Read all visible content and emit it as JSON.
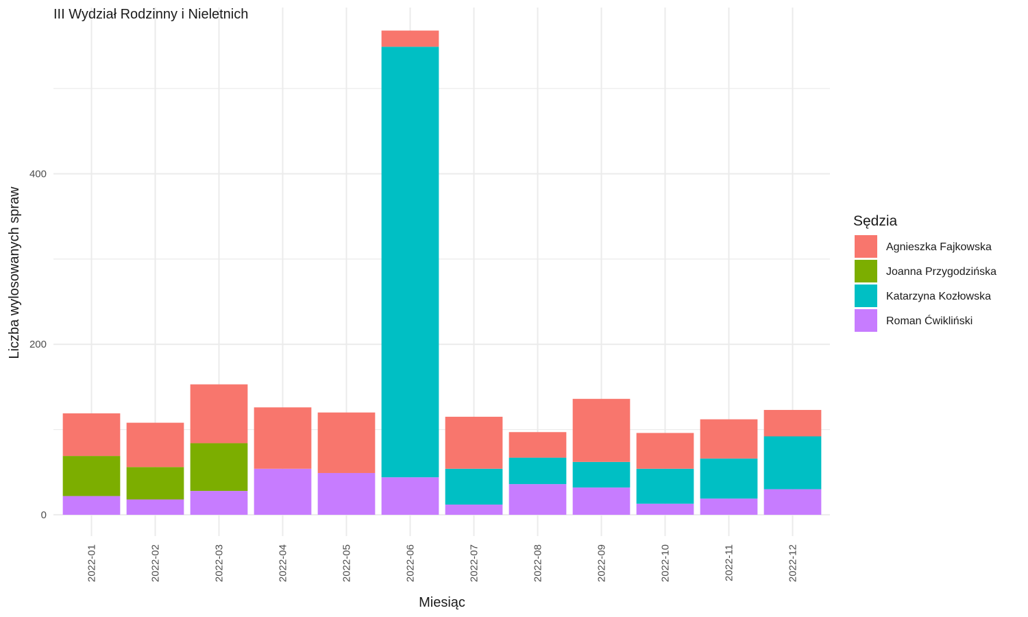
{
  "chart_data": {
    "type": "bar",
    "stacked": true,
    "title": "III Wydział Rodzinny i Nieletnich",
    "xlabel": "Miesiąc",
    "ylabel": "Liczba wylosowanych spraw",
    "ylim": [
      -25,
      595
    ],
    "yticks": [
      0,
      200,
      400
    ],
    "grid": true,
    "legend_position": "right",
    "categories": [
      "2022-01",
      "2022-02",
      "2022-03",
      "2022-04",
      "2022-05",
      "2022-06",
      "2022-07",
      "2022-08",
      "2022-09",
      "2022-10",
      "2022-11",
      "2022-12"
    ],
    "legend_title": "Sędzia",
    "series": [
      {
        "name": "Roman Ćwikliński",
        "color": "#C77CFF",
        "values": [
          22,
          18,
          28,
          54,
          49,
          44,
          12,
          36,
          32,
          13,
          19,
          30
        ]
      },
      {
        "name": "Katarzyna Kozłowska",
        "color": "#00BFC4",
        "values": [
          0,
          0,
          0,
          0,
          0,
          505,
          42,
          31,
          30,
          41,
          47,
          62
        ]
      },
      {
        "name": "Joanna Przygodzińska",
        "color": "#7CAE00",
        "values": [
          47,
          38,
          56,
          0,
          0,
          0,
          0,
          0,
          0,
          0,
          0,
          0
        ]
      },
      {
        "name": "Agnieszka Fajkowska",
        "color": "#F8766D",
        "values": [
          50,
          52,
          69,
          72,
          71,
          19,
          61,
          30,
          74,
          42,
          46,
          31
        ]
      }
    ],
    "legend_order": [
      "Agnieszka Fajkowska",
      "Joanna Przygodzińska",
      "Katarzyna Kozłowska",
      "Roman Ćwikliński"
    ]
  }
}
